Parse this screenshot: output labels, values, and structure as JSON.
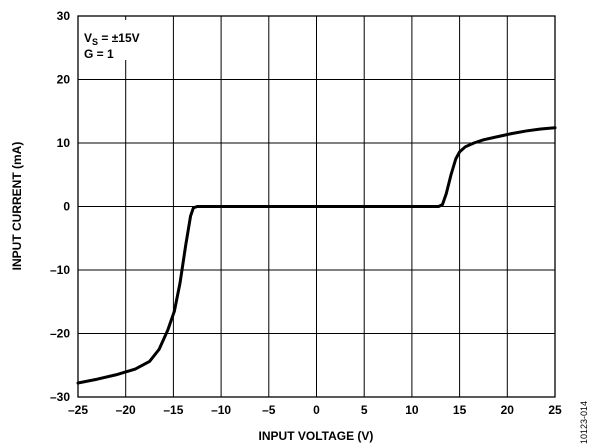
{
  "chart_data": {
    "type": "line",
    "xlabel": "INPUT VOLTAGE (V)",
    "ylabel": "INPUT CURRENT (mA)",
    "xlim": [
      -25,
      25
    ],
    "ylim": [
      -30,
      30
    ],
    "x_ticks": [
      -25,
      -20,
      -15,
      -10,
      -5,
      0,
      5,
      10,
      15,
      20,
      25
    ],
    "y_ticks": [
      -30,
      -20,
      -10,
      0,
      10,
      20,
      30
    ],
    "x_tick_labels": [
      "–25",
      "–20",
      "–15",
      "–10",
      "–5",
      "0",
      "5",
      "10",
      "15",
      "20",
      "25"
    ],
    "y_tick_labels": [
      "–30",
      "–20",
      "–10",
      "0",
      "10",
      "20",
      "30"
    ],
    "grid": true,
    "annotations": {
      "supply": {
        "prefix": "V",
        "sub": "S",
        "suffix": " = ±15V"
      },
      "gain": "G = 1"
    },
    "figure_id": "10123-014",
    "series": [
      {
        "color": "#000000",
        "points": [
          [
            -25,
            -27.8
          ],
          [
            -23,
            -27.2
          ],
          [
            -21,
            -26.5
          ],
          [
            -19,
            -25.6
          ],
          [
            -17.5,
            -24.4
          ],
          [
            -16.5,
            -22.5
          ],
          [
            -15.6,
            -19.5
          ],
          [
            -14.9,
            -16.5
          ],
          [
            -14.3,
            -12
          ],
          [
            -13.7,
            -6
          ],
          [
            -13.2,
            -1.5
          ],
          [
            -12.9,
            -0.2
          ],
          [
            -12.5,
            0
          ],
          [
            -5,
            0
          ],
          [
            0,
            0
          ],
          [
            5,
            0
          ],
          [
            12.8,
            0
          ],
          [
            13.2,
            0.3
          ],
          [
            13.6,
            2
          ],
          [
            14.1,
            5
          ],
          [
            14.6,
            7.5
          ],
          [
            15.0,
            8.6
          ],
          [
            15.6,
            9.4
          ],
          [
            16.5,
            10.0
          ],
          [
            17.5,
            10.5
          ],
          [
            19,
            11.0
          ],
          [
            20.5,
            11.5
          ],
          [
            22,
            11.9
          ],
          [
            23.5,
            12.2
          ],
          [
            25,
            12.4
          ]
        ]
      }
    ]
  }
}
